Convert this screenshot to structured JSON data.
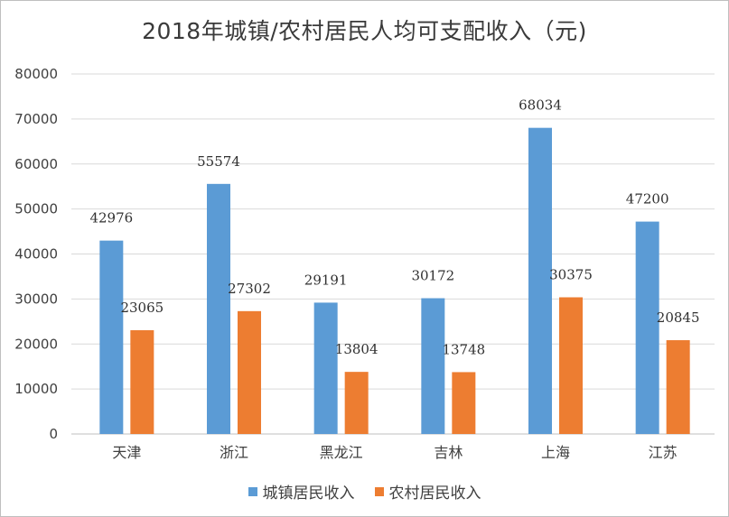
{
  "chart_data": {
    "type": "bar",
    "title": "2018年城镇/农村居民人均可支配收入（元)",
    "categories": [
      "天津",
      "浙江",
      "黑龙江",
      "吉林",
      "上海",
      "江苏"
    ],
    "series": [
      {
        "name": "城镇居民收入",
        "color": "#5b9bd5",
        "values": [
          42976,
          55574,
          29191,
          30172,
          68034,
          47200
        ]
      },
      {
        "name": "农村居民收入",
        "color": "#ed7d31",
        "values": [
          23065,
          27302,
          13804,
          13748,
          30375,
          20845
        ]
      }
    ],
    "ylim": [
      0,
      80000
    ],
    "yticks": [
      0,
      10000,
      20000,
      30000,
      40000,
      50000,
      60000,
      70000,
      80000
    ],
    "grid": true,
    "legend_position": "bottom"
  }
}
